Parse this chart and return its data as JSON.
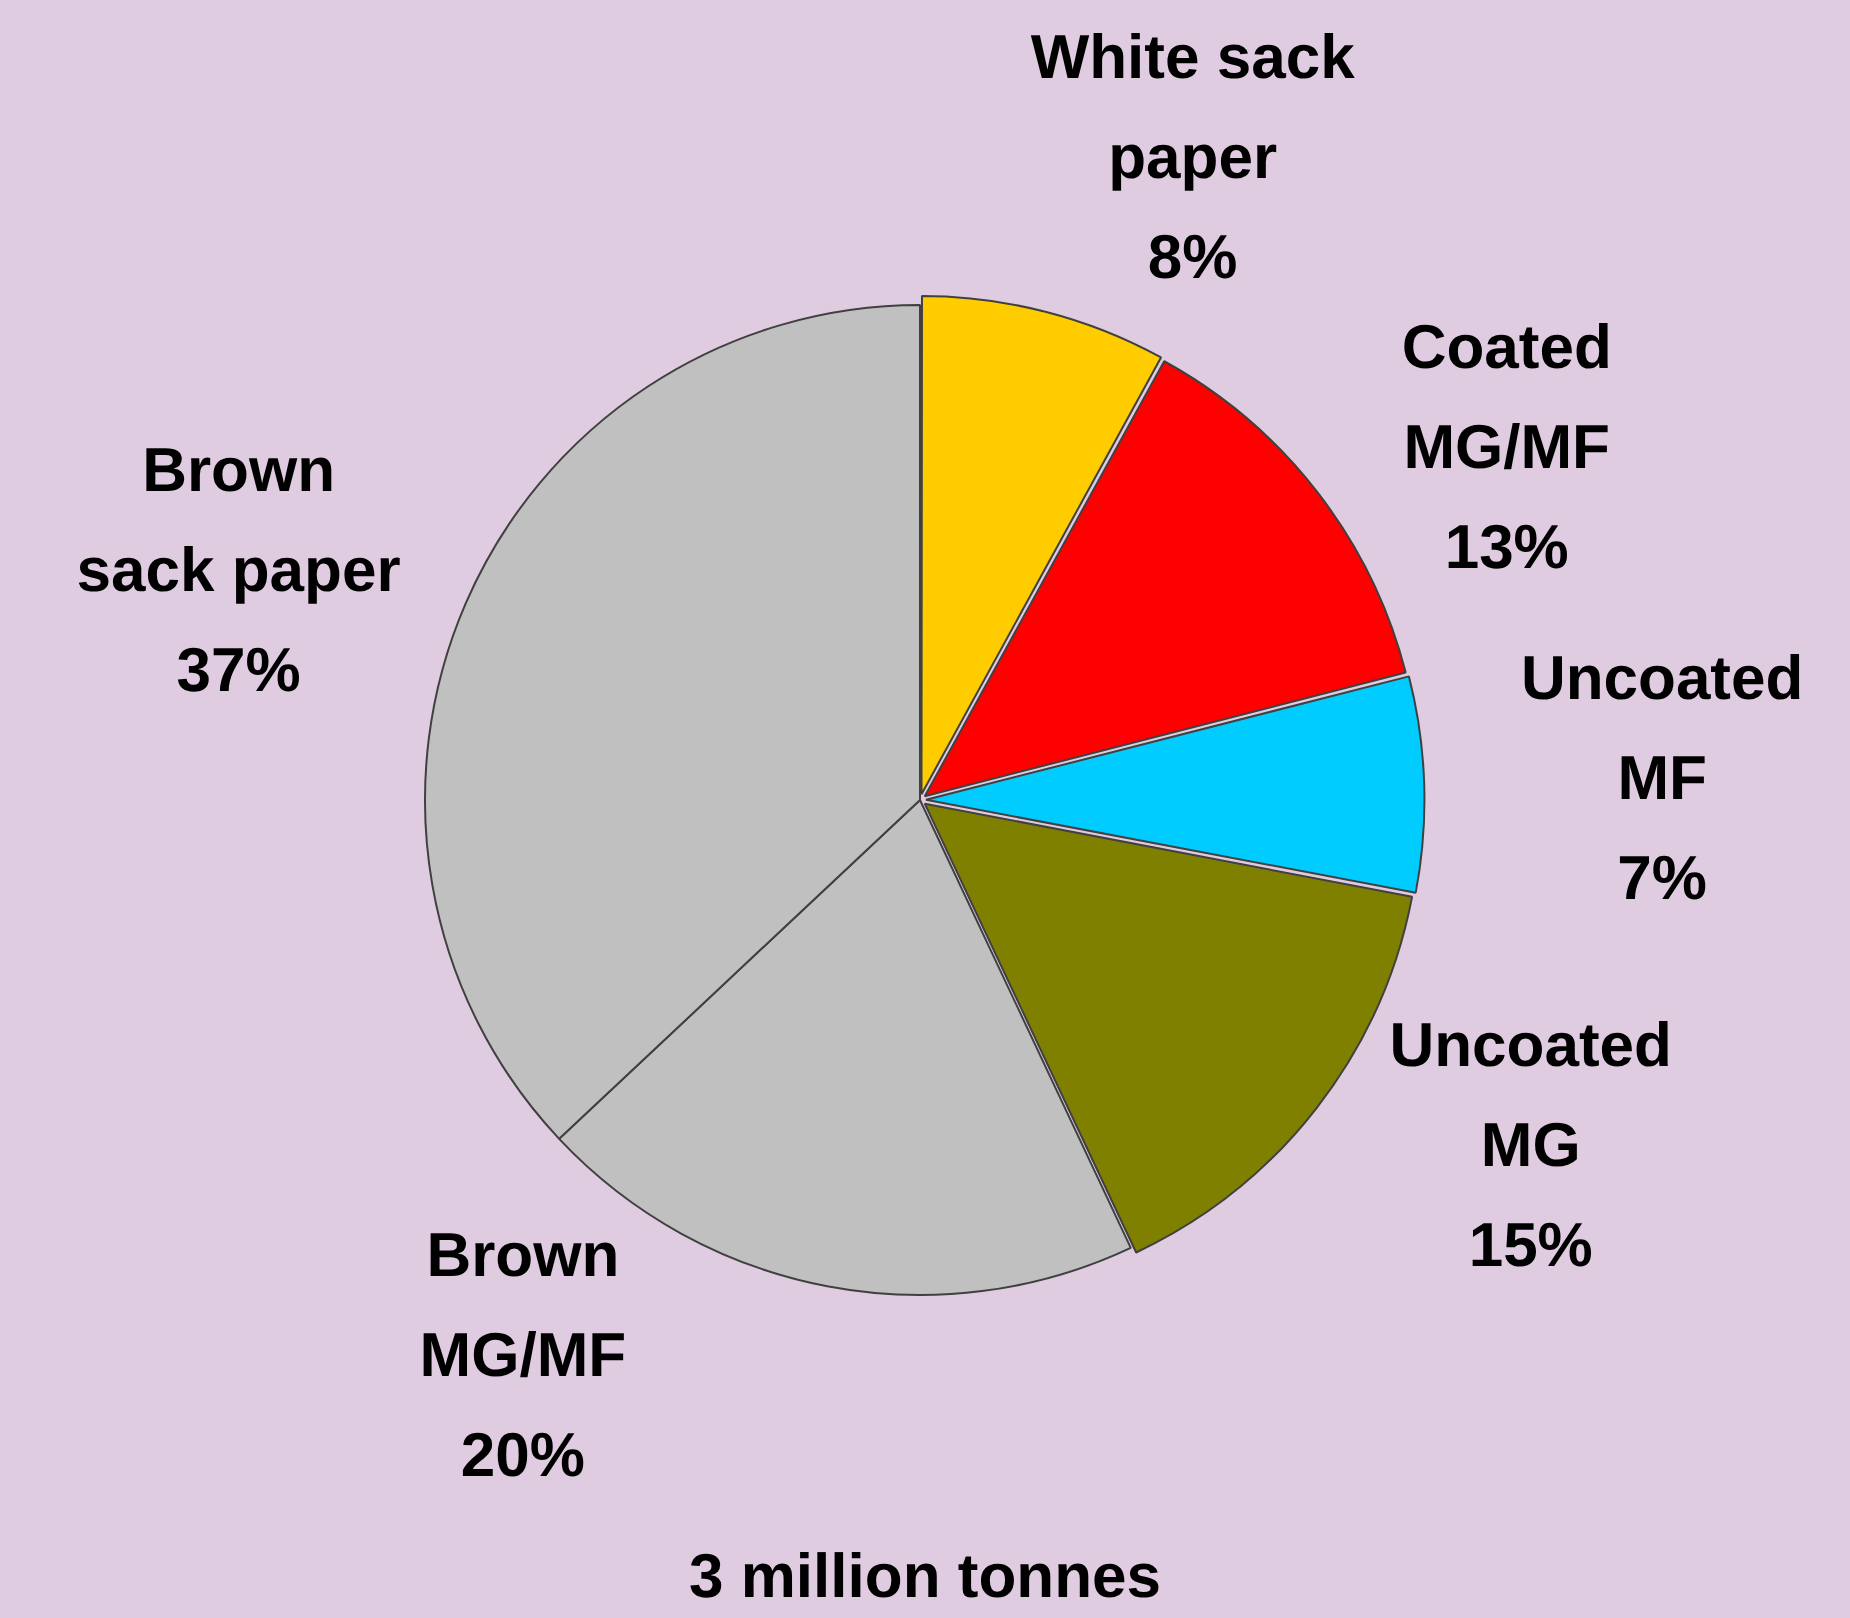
{
  "chart_data": {
    "type": "pie",
    "title": "3 million tonnes",
    "categories": [
      "White sack paper",
      "Coated MG/MF",
      "Uncoated MF",
      "Uncoated MG",
      "Brown MG/MF",
      "Brown sack paper"
    ],
    "values": [
      8,
      13,
      7,
      15,
      20,
      37
    ],
    "value_labels": [
      "8%",
      "13%",
      "7%",
      "15%",
      "20%",
      "37%"
    ],
    "colors": [
      "#ffcc00",
      "#ff0000",
      "#00ccff",
      "#808000",
      "#c0c0c0",
      "#c0c0c0"
    ],
    "legend": false
  }
}
